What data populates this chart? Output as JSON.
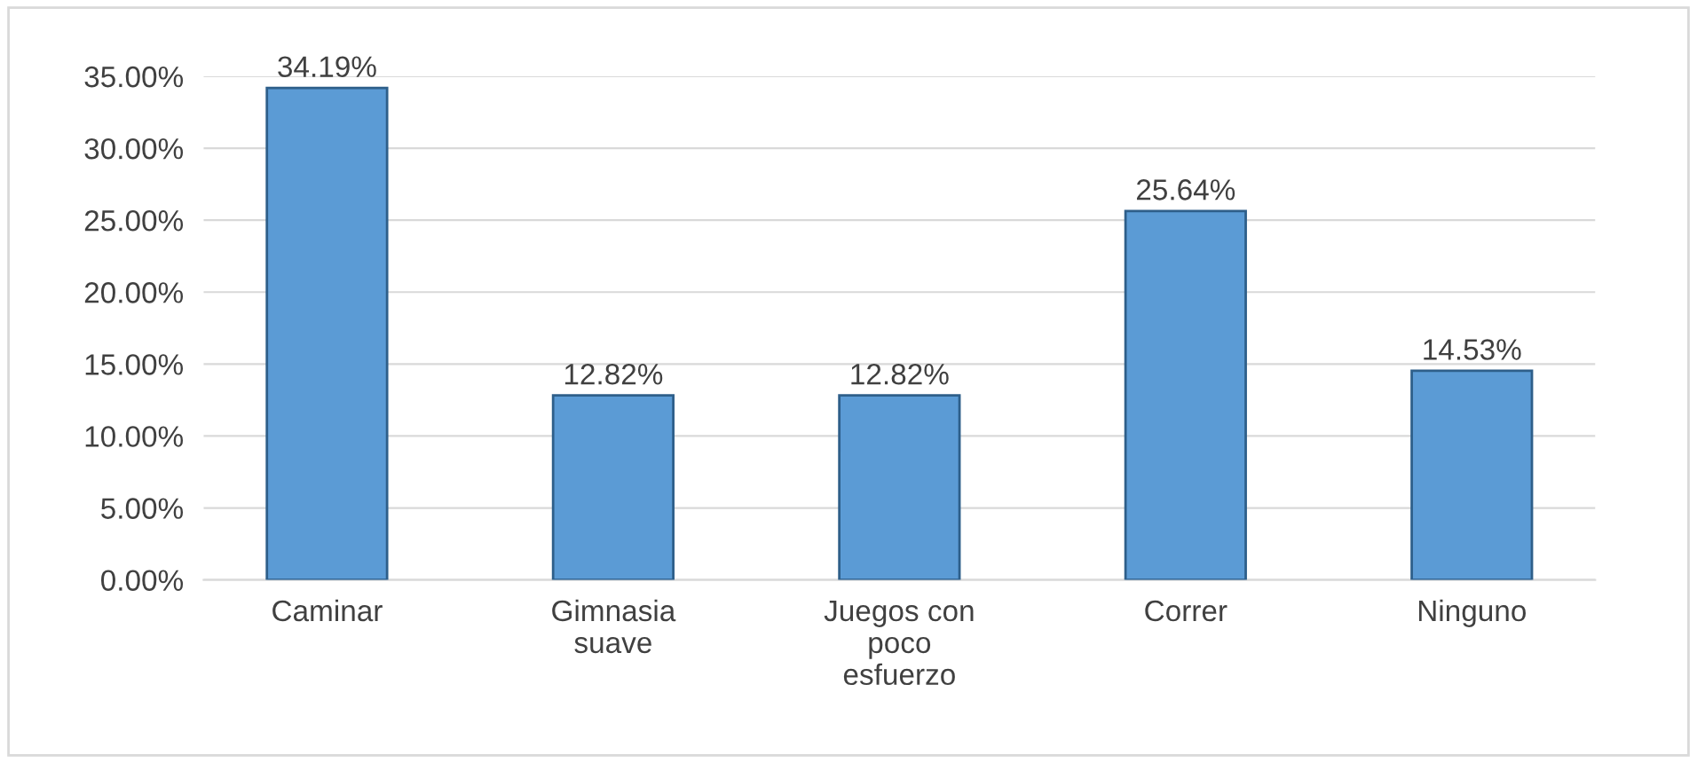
{
  "chart_data": {
    "type": "bar",
    "categories": [
      "Caminar",
      "Gimnasia\nsuave",
      "Juegos con\npoco\nesfuerzo",
      "Correr",
      "Ninguno"
    ],
    "values": [
      34.19,
      12.82,
      12.82,
      25.64,
      14.53
    ],
    "value_labels": [
      "34.19%",
      "12.82%",
      "12.82%",
      "25.64%",
      "14.53%"
    ],
    "color": "#5b9bd5",
    "ylim": [
      0,
      35
    ],
    "yticks": [
      {
        "value": 0,
        "label": "0.00%"
      },
      {
        "value": 5,
        "label": "5.00%"
      },
      {
        "value": 10,
        "label": "10.00%"
      },
      {
        "value": 15,
        "label": "15.00%"
      },
      {
        "value": 20,
        "label": "20.00%"
      },
      {
        "value": 25,
        "label": "25.00%"
      },
      {
        "value": 30,
        "label": "30.00%"
      },
      {
        "value": 35,
        "label": "35.00%"
      }
    ],
    "grid": "y"
  }
}
